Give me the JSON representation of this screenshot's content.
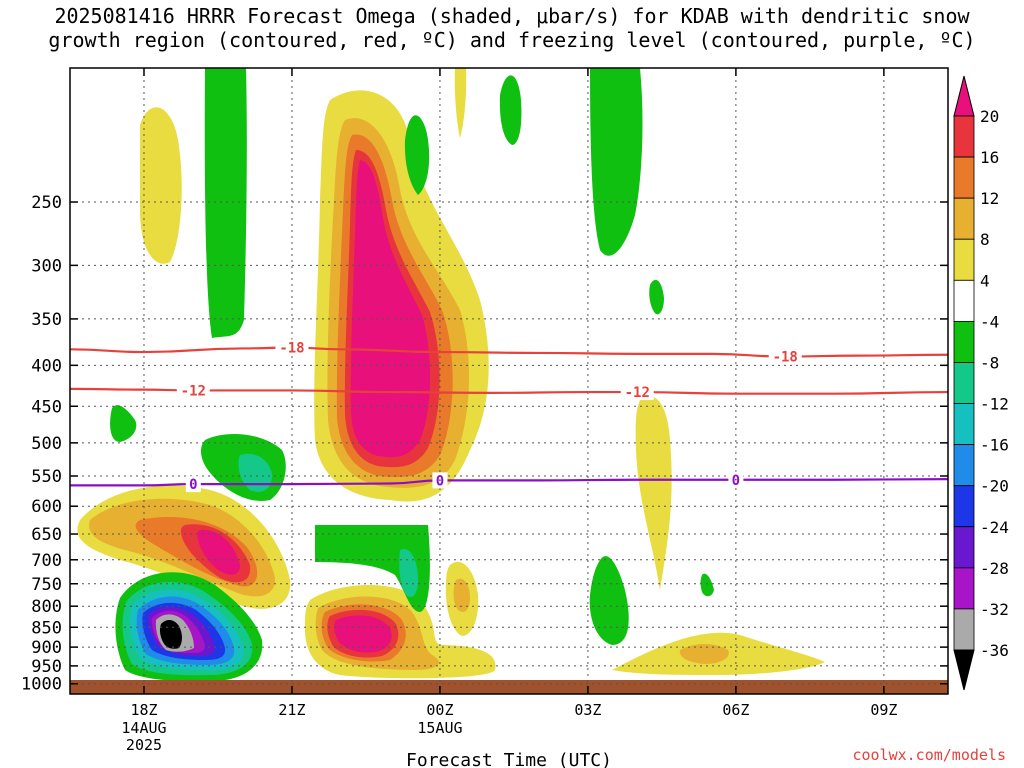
{
  "title_line1": "2025081416 HRRR Forecast Omega (shaded, μbar/s) for KDAB with dendritic snow",
  "title_line2": "growth region (contoured, red, ºC) and freezing level (contoured, purple, ºC)",
  "credit": "coolwx.com/models",
  "chart_data": {
    "type": "heatmap",
    "xlabel": "Forecast Time (UTC)",
    "ylabel": "",
    "x_ticks": [
      {
        "label": "18Z",
        "sub": [
          "14AUG",
          "2025"
        ],
        "hour": 2
      },
      {
        "label": "21Z",
        "sub": [],
        "hour": 5
      },
      {
        "label": "00Z",
        "sub": [
          "15AUG"
        ],
        "hour": 8
      },
      {
        "label": "03Z",
        "sub": [],
        "hour": 11
      },
      {
        "label": "06Z",
        "sub": [],
        "hour": 14
      },
      {
        "label": "09Z",
        "sub": [],
        "hour": 17
      }
    ],
    "xlim": [
      0.5,
      18.3
    ],
    "y_ticks": [
      250,
      300,
      350,
      400,
      450,
      500,
      550,
      600,
      650,
      700,
      750,
      800,
      850,
      900,
      950,
      1000
    ],
    "ylim": [
      1030,
      170
    ],
    "y_scale": "log",
    "colorbar": {
      "labels": [
        "20",
        "16",
        "12",
        "8",
        "4",
        "-4",
        "-8",
        "-12",
        "-16",
        "-20",
        "-24",
        "-28",
        "-32",
        "-36"
      ],
      "colors": [
        "#e8107a",
        "#e8343c",
        "#e87a2a",
        "#e8b030",
        "#e8dc40",
        "#ffffff",
        "#10c010",
        "#14c88a",
        "#16c0c0",
        "#1e8ce8",
        "#1c36e8",
        "#6a18d0",
        "#a814c8",
        "#aaaaaa",
        "#000000"
      ]
    },
    "contours": [
      {
        "name": "-18",
        "color": "#e8413c",
        "points": [
          [
            0.5,
            382
          ],
          [
            2,
            385
          ],
          [
            4,
            381
          ],
          [
            5,
            380
          ],
          [
            6,
            382
          ],
          [
            8,
            385
          ],
          [
            10,
            386
          ],
          [
            12,
            387
          ],
          [
            13.5,
            387
          ],
          [
            15,
            390
          ],
          [
            16.5,
            389
          ],
          [
            18.3,
            388
          ]
        ],
        "label_hours": [
          5,
          15
        ]
      },
      {
        "name": "-12",
        "color": "#e8413c",
        "points": [
          [
            0.5,
            428
          ],
          [
            2,
            429
          ],
          [
            3,
            430
          ],
          [
            5,
            430
          ],
          [
            7,
            432
          ],
          [
            9,
            433
          ],
          [
            11,
            432
          ],
          [
            12,
            432
          ],
          [
            14,
            434
          ],
          [
            16,
            434
          ],
          [
            18.3,
            432
          ]
        ],
        "label_hours": [
          3,
          12
        ]
      },
      {
        "name": "0",
        "color": "#8a10c8",
        "points": [
          [
            0.5,
            565
          ],
          [
            2,
            565
          ],
          [
            3,
            563
          ],
          [
            5,
            563
          ],
          [
            7,
            562
          ],
          [
            8,
            557
          ],
          [
            10,
            557
          ],
          [
            12,
            556
          ],
          [
            14,
            556
          ],
          [
            16,
            556
          ],
          [
            18.3,
            555
          ]
        ],
        "label_hours": [
          3,
          8,
          14
        ]
      }
    ]
  }
}
